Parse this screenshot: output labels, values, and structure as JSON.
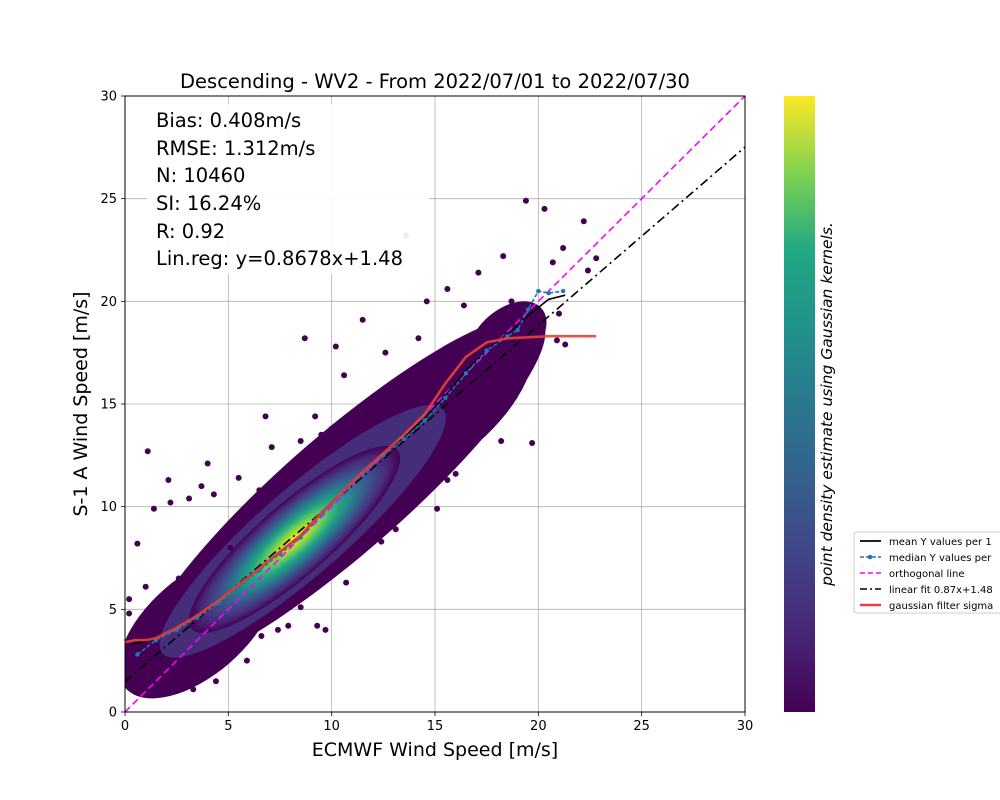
{
  "chart_data": {
    "type": "scatter",
    "title": "Descending - WV2 - From 2022/07/01 to 2022/07/30",
    "xlabel": "ECMWF Wind Speed [m/s]",
    "ylabel": "S-1 A Wind Speed [m/s]",
    "xlim": [
      0,
      30
    ],
    "ylim": [
      0,
      30
    ],
    "xticks": [
      "0",
      "5",
      "10",
      "15",
      "20",
      "25",
      "30"
    ],
    "yticks": [
      "0",
      "5",
      "10",
      "15",
      "20",
      "25",
      "30"
    ],
    "grid": true,
    "colormap": "viridis",
    "colorbar_label": "point density estimate using Gaussian kernels.",
    "stats": [
      "Bias: 0.408m/s",
      "RMSE: 1.312m/s",
      "N: 10460",
      "SI: 16.24%",
      "R: 0.92",
      "Lin.reg: y=0.8678x+1.48"
    ],
    "density_core": {
      "center": [
        7.5,
        7.9
      ],
      "slope": 0.87
    },
    "outliers": [
      [
        1.1,
        12.7
      ],
      [
        1.4,
        9.9
      ],
      [
        2.2,
        10.2
      ],
      [
        2.1,
        11.3
      ],
      [
        3.1,
        10.4
      ],
      [
        4.0,
        12.1
      ],
      [
        3.7,
        11.0
      ],
      [
        4.3,
        10.6
      ],
      [
        5.5,
        11.4
      ],
      [
        6.8,
        14.4
      ],
      [
        7.1,
        12.9
      ],
      [
        6.5,
        10.8
      ],
      [
        8.5,
        13.2
      ],
      [
        9.2,
        14.4
      ],
      [
        9.5,
        13.5
      ],
      [
        8.7,
        18.2
      ],
      [
        10.2,
        17.8
      ],
      [
        10.6,
        16.4
      ],
      [
        11.5,
        19.1
      ],
      [
        12.6,
        17.5
      ],
      [
        13.6,
        23.2
      ],
      [
        14.6,
        20.0
      ],
      [
        15.6,
        20.6
      ],
      [
        17.1,
        21.4
      ],
      [
        18.3,
        22.2
      ],
      [
        19.4,
        24.9
      ],
      [
        20.3,
        24.5
      ],
      [
        22.2,
        23.9
      ],
      [
        21.2,
        22.6
      ],
      [
        20.7,
        21.9
      ],
      [
        22.4,
        21.5
      ],
      [
        22.8,
        22.1
      ],
      [
        21.3,
        17.9
      ],
      [
        19.7,
        13.1
      ],
      [
        18.2,
        13.2
      ],
      [
        17.3,
        14.5
      ],
      [
        16.0,
        11.6
      ],
      [
        15.6,
        11.3
      ],
      [
        15.1,
        9.9
      ],
      [
        13.1,
        8.9
      ],
      [
        12.4,
        8.3
      ],
      [
        10.7,
        6.3
      ],
      [
        9.3,
        4.2
      ],
      [
        9.7,
        4.0
      ],
      [
        7.9,
        4.2
      ],
      [
        8.5,
        5.1
      ],
      [
        6.6,
        3.7
      ],
      [
        5.0,
        3.0
      ],
      [
        4.4,
        1.5
      ],
      [
        3.3,
        1.1
      ],
      [
        2.3,
        1.6
      ],
      [
        1.7,
        2.0
      ],
      [
        0.5,
        1.3
      ],
      [
        0.1,
        2.4
      ],
      [
        0.2,
        4.8
      ],
      [
        0.6,
        8.2
      ],
      [
        0.2,
        5.5
      ],
      [
        1.3,
        4.0
      ],
      [
        2.9,
        1.4
      ],
      [
        5.9,
        2.5
      ],
      [
        7.4,
        4.0
      ],
      [
        11.1,
        7.8
      ],
      [
        13.8,
        10.3
      ],
      [
        14.5,
        11.6
      ],
      [
        16.9,
        13.9
      ],
      [
        19.8,
        17.2
      ],
      [
        20.9,
        18.1
      ],
      [
        17.7,
        16.7
      ],
      [
        18.7,
        20.0
      ],
      [
        16.4,
        19.8
      ],
      [
        14.2,
        18.2
      ],
      [
        12.0,
        15.0
      ],
      [
        10.0,
        13.8
      ],
      [
        5.1,
        8.0
      ],
      [
        3.6,
        7.4
      ],
      [
        2.6,
        6.5
      ],
      [
        1.0,
        6.1
      ],
      [
        21.0,
        19.4
      ]
    ],
    "series": [
      {
        "name": "mean Y values per 1",
        "color": "#000000",
        "style": "solid",
        "x": [
          0.3,
          0.8,
          1.5,
          2.5,
          3.5,
          4.5,
          5.5,
          6.5,
          7.5,
          8.5,
          9.5,
          10.5,
          11.5,
          12.5,
          13.5,
          14.5,
          15.5,
          16.5,
          17.5,
          18.5,
          19.5,
          20.5,
          21.3
        ],
        "y": [
          3.3,
          3.4,
          3.6,
          4.1,
          4.7,
          5.4,
          6.2,
          7.0,
          7.8,
          8.6,
          9.7,
          10.7,
          11.7,
          12.6,
          13.4,
          14.3,
          15.4,
          16.6,
          17.6,
          18.4,
          19.3,
          20.1,
          20.3
        ]
      },
      {
        "name": "median Y values per",
        "color": "#1f77b4",
        "style": "dashed-marker",
        "x": [
          0.6,
          1.5,
          2.5,
          3.5,
          4.5,
          5.5,
          6.5,
          7.5,
          8.5,
          9.5,
          10.5,
          11.5,
          12.5,
          13.5,
          14.5,
          15.5,
          16.5,
          17.5,
          18.5,
          19.0,
          19.5,
          20.0,
          20.5,
          21.2
        ],
        "y": [
          2.8,
          3.5,
          4.0,
          4.6,
          5.3,
          6.1,
          6.9,
          7.7,
          8.5,
          9.6,
          10.6,
          11.6,
          12.5,
          13.3,
          14.2,
          15.3,
          16.5,
          17.6,
          18.3,
          18.6,
          19.6,
          20.5,
          20.4,
          20.5
        ]
      },
      {
        "name": "orthogonal line",
        "color": "#ff00ff",
        "style": "dashed",
        "x": [
          0,
          30
        ],
        "y": [
          0,
          30
        ]
      },
      {
        "name": "linear fit 0.87x+1.48",
        "color": "#000000",
        "style": "dashdot",
        "x": [
          0,
          30
        ],
        "y": [
          1.48,
          27.51
        ]
      },
      {
        "name": "gaussian filter sigma",
        "color": "#e8413a",
        "style": "solid-thick",
        "x": [
          0.0,
          0.5,
          1.0,
          1.5,
          2.5,
          3.5,
          4.5,
          5.5,
          6.5,
          7.5,
          8.5,
          9.5,
          10.5,
          11.5,
          12.5,
          13.5,
          14.5,
          15.5,
          16.5,
          17.5,
          18.5,
          19.5,
          20.5,
          21.5,
          22.8
        ],
        "y": [
          3.4,
          3.5,
          3.5,
          3.6,
          4.1,
          4.7,
          5.4,
          6.2,
          7.0,
          7.8,
          8.6,
          9.7,
          10.7,
          11.7,
          12.6,
          13.5,
          14.5,
          16.0,
          17.3,
          18.0,
          18.2,
          18.25,
          18.3,
          18.3,
          18.3
        ]
      }
    ],
    "legend": {
      "placement": "right, outside plot",
      "entries": [
        "mean Y values per 1",
        "median Y values per",
        "orthogonal line",
        "linear fit 0.87x+1.48",
        "gaussian filter sigma"
      ]
    }
  }
}
